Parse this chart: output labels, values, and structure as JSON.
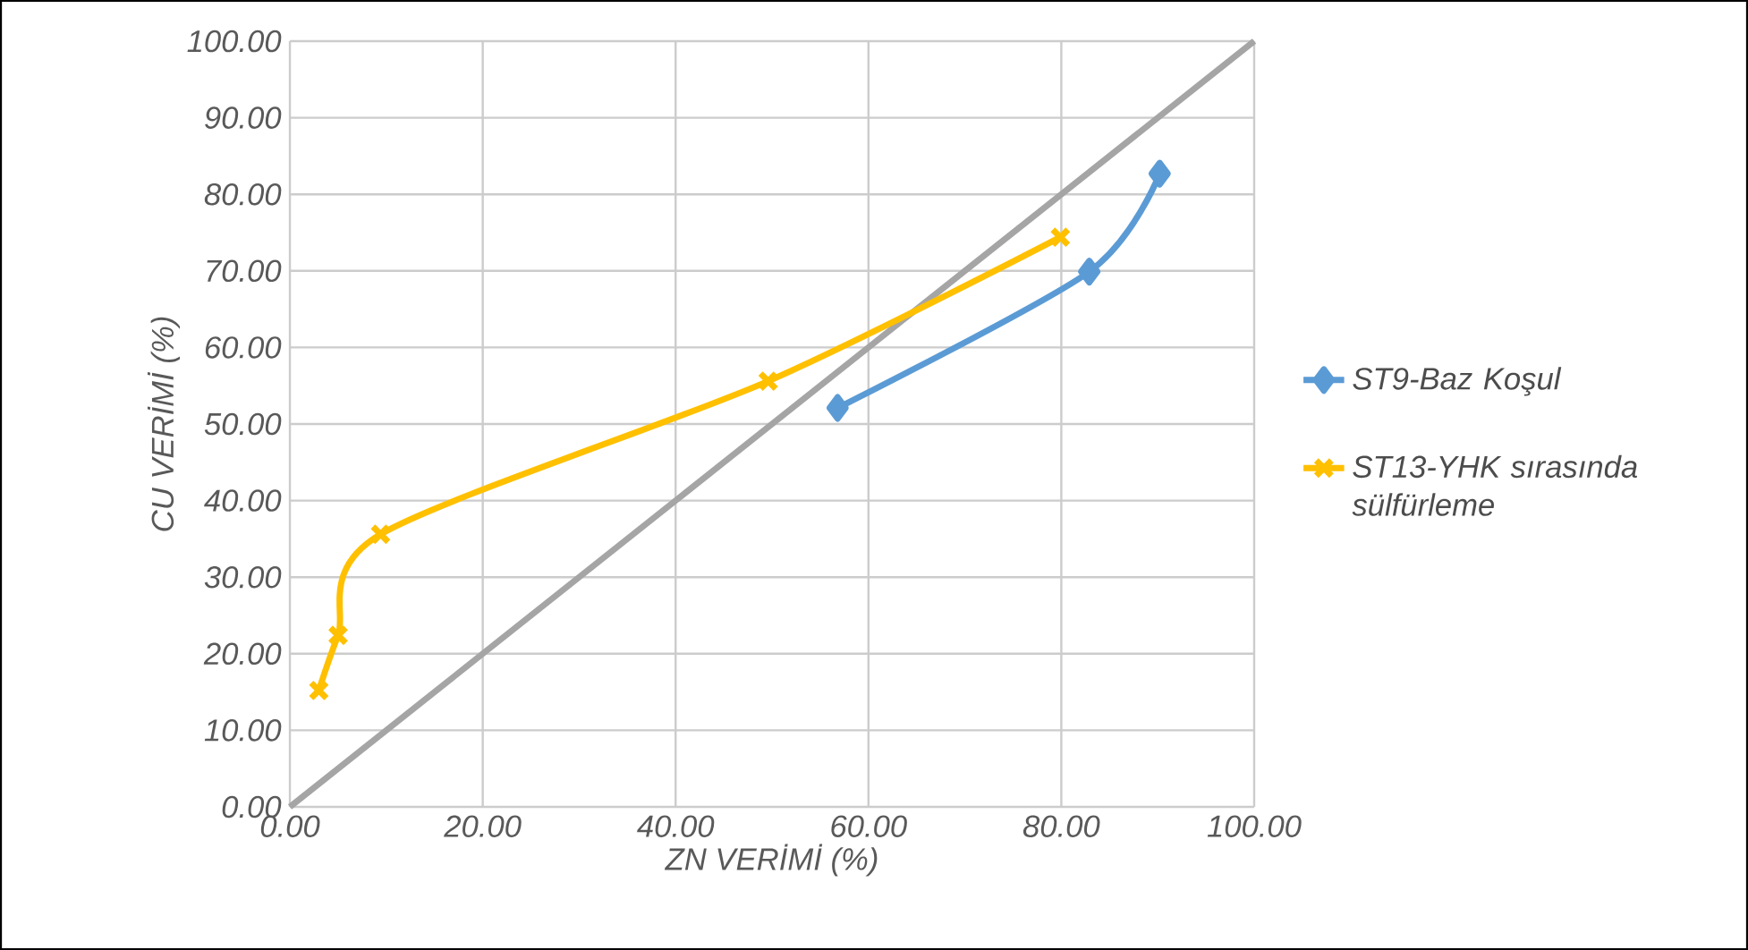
{
  "chart_data": {
    "type": "line",
    "xlabel": "ZN VERİMİ (%)",
    "ylabel": "CU VERİMİ (%)",
    "xlim": [
      0,
      100
    ],
    "ylim": [
      0,
      100
    ],
    "xticks": [
      {
        "value": 0,
        "label": "0.00"
      },
      {
        "value": 20,
        "label": "20.00"
      },
      {
        "value": 40,
        "label": "40.00"
      },
      {
        "value": 60,
        "label": "60.00"
      },
      {
        "value": 80,
        "label": "80.00"
      },
      {
        "value": 100,
        "label": "100.00"
      }
    ],
    "yticks": [
      {
        "value": 0,
        "label": "0.00"
      },
      {
        "value": 10,
        "label": "10.00"
      },
      {
        "value": 20,
        "label": "20.00"
      },
      {
        "value": 30,
        "label": "30.00"
      },
      {
        "value": 40,
        "label": "40.00"
      },
      {
        "value": 50,
        "label": "50.00"
      },
      {
        "value": 60,
        "label": "60.00"
      },
      {
        "value": 70,
        "label": "70.00"
      },
      {
        "value": 80,
        "label": "80.00"
      },
      {
        "value": 90,
        "label": "90.00"
      },
      {
        "value": 100,
        "label": "100.00"
      }
    ],
    "grid": true,
    "legend": "right",
    "series": [
      {
        "name": "ST9-Baz Koşul",
        "color": "#5b9bd5",
        "marker": "diamond",
        "x": [
          56.8,
          82.9,
          90.2
        ],
        "values": [
          52.1,
          69.9,
          82.7
        ]
      },
      {
        "name": "ST13-YHK sırasında sülfürleme",
        "color": "#ffc000",
        "marker": "cross",
        "x": [
          3.0,
          5.0,
          9.4,
          49.6,
          79.9
        ],
        "values": [
          15.2,
          22.4,
          35.6,
          55.6,
          74.4
        ]
      },
      {
        "color": "#a5a5a5",
        "marker": "none",
        "x": [
          0,
          100
        ],
        "values": [
          0,
          100
        ]
      }
    ]
  }
}
